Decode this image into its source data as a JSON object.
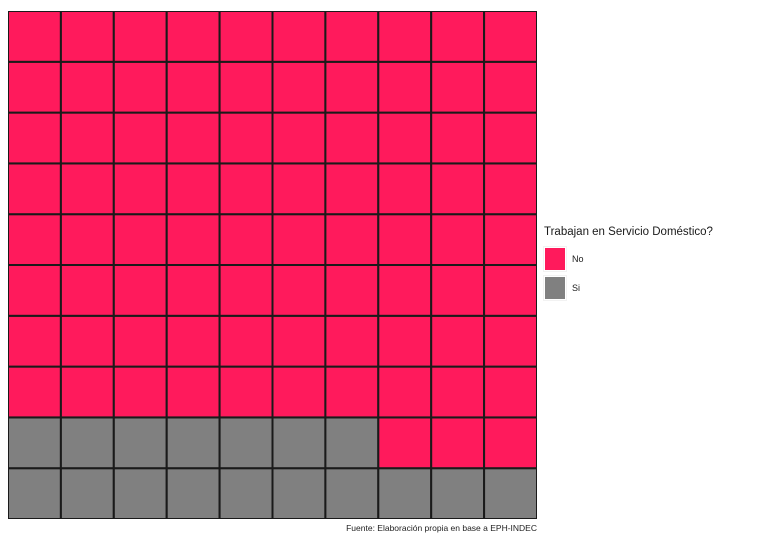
{
  "chart_data": {
    "type": "waffle",
    "rows": 10,
    "columns": 10,
    "series": [
      {
        "name": "No",
        "value": 83,
        "color": "#ff1a5c"
      },
      {
        "name": "Si",
        "value": 17,
        "color": "#808080"
      }
    ],
    "legend": {
      "title": "Trabajan en Servicio Doméstico?",
      "position": "right"
    },
    "caption": "Fuente: Elaboración propia en base a EPH-INDEC",
    "grid_line_color": "#1a1a1a"
  }
}
